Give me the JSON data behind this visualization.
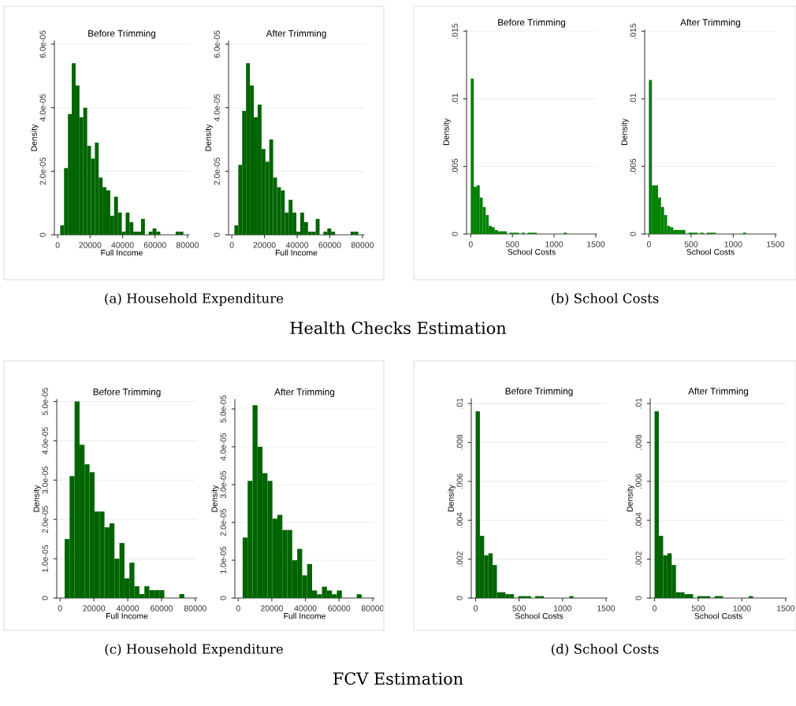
{
  "chart_data": [
    {
      "type": "histogram",
      "title": "Before Trimming",
      "xlabel": "Full Income",
      "ylabel": "Density",
      "color": "#006400",
      "grid": "y",
      "bins": [
        1600,
        3970,
        6340,
        8710,
        11080,
        13450,
        15820,
        18190,
        20560,
        22930,
        25300,
        27670,
        30040,
        32410,
        34780,
        37150,
        39520,
        41890,
        44260,
        46630,
        49000,
        51370,
        53740,
        56110,
        58480,
        60850,
        63220,
        65590,
        67960,
        70330,
        72700,
        75070,
        77440
      ],
      "values": [
        3e-06,
        2.1e-05,
        3.8e-05,
        5.4e-05,
        4.7e-05,
        3.7e-05,
        4e-05,
        2.8e-05,
        2.4e-05,
        2.9e-05,
        1.8e-05,
        1.5e-05,
        1.4e-05,
        6e-06,
        1.2e-05,
        7e-06,
        1e-06,
        7e-06,
        4e-06,
        1e-06,
        1e-06,
        5e-06,
        0,
        1e-06,
        2e-06,
        1e-06,
        0,
        0,
        0,
        0,
        1e-06,
        1e-06
      ],
      "xlim": [
        -2000,
        81000
      ],
      "xticks": [
        0,
        20000,
        40000,
        60000,
        80000
      ],
      "ylim": [
        0,
        6.1e-05
      ],
      "yticks": [
        0,
        {
          "value": 2e-05,
          "label": "2.0e-05"
        },
        {
          "value": 4e-05,
          "label": "4.0e-05"
        },
        {
          "value": 6e-05,
          "label": "6.0e-05"
        }
      ],
      "annotations": [
        "(a) Household Expenditure"
      ]
    },
    {
      "type": "histogram",
      "title": "After Trimming",
      "xlabel": "Full Income",
      "ylabel": "Density",
      "color": "#006400",
      "grid": "y",
      "bins": [
        1600,
        3970,
        6340,
        8710,
        11080,
        13450,
        15820,
        18190,
        20560,
        22930,
        25300,
        27670,
        30040,
        32410,
        34780,
        37150,
        39520,
        41890,
        44260,
        46630,
        49000,
        51370,
        53740,
        56110,
        58480,
        60850,
        63220,
        65590,
        67960,
        70330,
        72700,
        75070,
        77440
      ],
      "values": [
        3e-06,
        2.2e-05,
        3.9e-05,
        5.4e-05,
        4.7e-05,
        3.7e-05,
        4.1e-05,
        2.7e-05,
        2.3e-05,
        3e-05,
        1.8e-05,
        1.5e-05,
        1.4e-05,
        7e-06,
        1.1e-05,
        7e-06,
        1e-06,
        7e-06,
        4e-06,
        1e-06,
        1e-06,
        5e-06,
        0,
        1e-06,
        2e-06,
        1e-06,
        0,
        0,
        0,
        0,
        1e-06,
        1e-06
      ],
      "xlim": [
        -2000,
        81000
      ],
      "xticks": [
        0,
        20000,
        40000,
        60000,
        80000
      ],
      "ylim": [
        0,
        6.1e-05
      ],
      "yticks": [
        0,
        {
          "value": 2e-05,
          "label": "2.0e-05"
        },
        {
          "value": 4e-05,
          "label": "4.0e-05"
        },
        {
          "value": 6e-05,
          "label": "6.0e-05"
        }
      ]
    },
    {
      "type": "histogram",
      "title": "Before Trimming",
      "xlabel": "School Costs",
      "ylabel": "Density",
      "color": "#008000",
      "grid": "y",
      "bins": [
        0,
        36,
        72,
        108,
        144,
        180,
        216,
        252,
        288,
        324,
        360,
        396,
        432,
        468,
        504,
        540,
        576,
        612,
        648,
        684,
        720,
        756,
        792,
        828,
        864,
        900,
        936,
        972,
        1008,
        1044,
        1080,
        1116,
        1152,
        1188,
        1224,
        1260,
        1296,
        1332,
        1368,
        1404,
        1440,
        1476
      ],
      "values": [
        0.0115,
        0.0035,
        0.0036,
        0.0027,
        0.002,
        0.0014,
        0.0006,
        0.0005,
        0.0003,
        0.0002,
        0.0002,
        0.0002,
        0,
        0.0001,
        0.0001,
        0.0001,
        0,
        0.0001,
        0,
        0.0001,
        0.0001,
        0.0001,
        0,
        0,
        0,
        0,
        0,
        0,
        0,
        0,
        0,
        0.0001,
        0,
        0,
        0,
        0,
        0,
        0,
        0,
        0,
        0
      ],
      "xlim": [
        -50,
        1510
      ],
      "xticks": [
        0,
        500,
        1000,
        1500
      ],
      "ylim": [
        0,
        0.0151
      ],
      "yticks": [
        0,
        {
          "value": 0.005,
          "label": ".005"
        },
        {
          "value": 0.01,
          "label": ".01"
        },
        {
          "value": 0.015,
          "label": ".015"
        }
      ],
      "annotations": [
        "(b) School Costs",
        "Health Checks Estimation"
      ]
    },
    {
      "type": "histogram",
      "title": "After Trimming",
      "xlabel": "School Costs",
      "ylabel": "Density",
      "color": "#008000",
      "grid": "y",
      "bins": [
        0,
        36,
        72,
        108,
        144,
        180,
        216,
        252,
        288,
        324,
        360,
        396,
        432,
        468,
        504,
        540,
        576,
        612,
        648,
        684,
        720,
        756,
        792,
        828,
        864,
        900,
        936,
        972,
        1008,
        1044,
        1080,
        1116,
        1152,
        1188,
        1224,
        1260,
        1296,
        1332,
        1368,
        1404,
        1440,
        1476
      ],
      "values": [
        0.0114,
        0.0036,
        0.0036,
        0.0027,
        0.002,
        0.0014,
        0.0006,
        0.0005,
        0.0003,
        0.0003,
        0.0003,
        0.0003,
        0,
        0.0001,
        0.0001,
        0.0001,
        0,
        0.0001,
        0,
        0.0001,
        0.0001,
        0.0001,
        0,
        0,
        0,
        0,
        0,
        0,
        0,
        0,
        0,
        0.0001,
        0,
        0,
        0,
        0,
        0,
        0,
        0,
        0,
        0
      ],
      "xlim": [
        -50,
        1510
      ],
      "xticks": [
        0,
        500,
        1000,
        1500
      ],
      "ylim": [
        0,
        0.0151
      ],
      "yticks": [
        0,
        {
          "value": 0.005,
          "label": ".005"
        },
        {
          "value": 0.01,
          "label": ".01"
        },
        {
          "value": 0.015,
          "label": ".015"
        }
      ]
    },
    {
      "type": "histogram",
      "title": "Before Trimming",
      "xlabel": "Full Income",
      "ylabel": "Density",
      "color": "#006400",
      "grid": "y",
      "bins": [
        2650,
        5600,
        8550,
        11500,
        14450,
        17400,
        20350,
        23300,
        26250,
        29200,
        32150,
        35100,
        38050,
        41000,
        43950,
        46900,
        49850,
        52800,
        55750,
        58700,
        61650,
        64600,
        67550,
        70500,
        73450
      ],
      "values": [
        1.5e-05,
        3.1e-05,
        5e-05,
        3.9e-05,
        3.4e-05,
        3.2e-05,
        2.2e-05,
        2.2e-05,
        1.8e-05,
        1.9e-05,
        1e-05,
        1.4e-05,
        5e-06,
        9e-06,
        3e-06,
        1e-06,
        3e-06,
        2e-06,
        2e-06,
        2e-06,
        0,
        0,
        0,
        1e-06
      ],
      "xlim": [
        -2000,
        81000
      ],
      "xticks": [
        0,
        20000,
        40000,
        60000,
        80000
      ],
      "ylim": [
        0,
        5.05e-05
      ],
      "yticks": [
        0,
        {
          "value": 1e-05,
          "label": "1.0e-05"
        },
        {
          "value": 2e-05,
          "label": "2.0e-05"
        },
        {
          "value": 3e-05,
          "label": "3.0e-05"
        },
        {
          "value": 4e-05,
          "label": "4.0e-05"
        },
        {
          "value": 5e-05,
          "label": "5.0e-05"
        }
      ],
      "annotations": [
        "(c) Household Expenditure"
      ]
    },
    {
      "type": "histogram",
      "title": "After Trimming",
      "xlabel": "Full Income",
      "ylabel": "Density",
      "color": "#006400",
      "grid": "y",
      "bins": [
        2650,
        5600,
        8550,
        11500,
        14450,
        17400,
        20350,
        23300,
        26250,
        29200,
        32150,
        35100,
        38050,
        41000,
        43950,
        46900,
        49850,
        52800,
        55750,
        58700,
        61650,
        64600,
        67550,
        70500,
        73450
      ],
      "values": [
        1.6e-05,
        3.1e-05,
        5.1e-05,
        4e-05,
        3.3e-05,
        3.1e-05,
        2.1e-05,
        2.2e-05,
        1.8e-05,
        1.8e-05,
        1e-05,
        1.3e-05,
        6e-06,
        9e-06,
        2e-06,
        1e-06,
        3e-06,
        2e-06,
        1e-06,
        2e-06,
        0,
        0,
        0,
        1e-06
      ],
      "xlim": [
        -2000,
        81000
      ],
      "xticks": [
        0,
        20000,
        40000,
        60000,
        80000
      ],
      "ylim": [
        0,
        5.25e-05
      ],
      "yticks": [
        0,
        {
          "value": 1e-05,
          "label": "1.0e-05"
        },
        {
          "value": 2e-05,
          "label": "2.0e-05"
        },
        {
          "value": 3e-05,
          "label": "3.0e-05"
        },
        {
          "value": 4e-05,
          "label": "4.0e-05"
        },
        {
          "value": 5e-05,
          "label": "5.0e-05"
        }
      ]
    },
    {
      "type": "histogram",
      "title": "Before Trimming",
      "xlabel": "School Costs",
      "ylabel": "Density",
      "color": "#006400",
      "grid": "y",
      "bins": [
        0,
        49,
        98,
        147,
        196,
        245,
        294,
        343,
        392,
        441,
        490,
        539,
        588,
        637,
        686,
        735,
        784,
        833,
        882,
        931,
        980,
        1029,
        1078,
        1127,
        1176,
        1225,
        1274,
        1323,
        1372,
        1421,
        1470
      ],
      "values": [
        0.0096,
        0.0032,
        0.0022,
        0.0023,
        0.0017,
        0.0003,
        0.0003,
        0.0002,
        0.0002,
        0,
        0.0001,
        0.0001,
        0.0001,
        0,
        0.0001,
        0.0001,
        0,
        0,
        0,
        0,
        0,
        0,
        0.0001,
        0,
        0,
        0,
        0,
        0,
        0,
        0
      ],
      "xlim": [
        -50,
        1510
      ],
      "xticks": [
        0,
        500,
        1000,
        1500
      ],
      "ylim": [
        0,
        0.01025
      ],
      "yticks": [
        0,
        {
          "value": 0.002,
          "label": ".002"
        },
        {
          "value": 0.004,
          "label": ".004"
        },
        {
          "value": 0.006,
          "label": ".006"
        },
        {
          "value": 0.008,
          "label": ".008"
        },
        {
          "value": 0.01,
          "label": ".01"
        }
      ],
      "annotations": [
        "(d) School Costs",
        "FCV Estimation"
      ]
    },
    {
      "type": "histogram",
      "title": "After Trimming",
      "xlabel": "School Costs",
      "ylabel": "Density",
      "color": "#006400",
      "grid": "y",
      "bins": [
        0,
        49,
        98,
        147,
        196,
        245,
        294,
        343,
        392,
        441,
        490,
        539,
        588,
        637,
        686,
        735,
        784,
        833,
        882,
        931,
        980,
        1029,
        1078,
        1127,
        1176,
        1225,
        1274,
        1323,
        1372,
        1421,
        1470
      ],
      "values": [
        0.0096,
        0.0032,
        0.0022,
        0.0023,
        0.0017,
        0.0003,
        0.0003,
        0.0002,
        0.0002,
        0,
        0.0001,
        0.0001,
        0.0001,
        0,
        0.0001,
        0.0001,
        0,
        0,
        0,
        0,
        0,
        0,
        0.0001,
        0,
        0,
        0,
        0,
        0,
        0,
        0
      ],
      "xlim": [
        -50,
        1510
      ],
      "xticks": [
        0,
        500,
        1000,
        1500
      ],
      "ylim": [
        0,
        0.01025
      ],
      "yticks": [
        0,
        {
          "value": 0.002,
          "label": ".002"
        },
        {
          "value": 0.004,
          "label": ".004"
        },
        {
          "value": 0.006,
          "label": ".006"
        },
        {
          "value": 0.008,
          "label": ".008"
        },
        {
          "value": 0.01,
          "label": ".01"
        }
      ]
    }
  ]
}
